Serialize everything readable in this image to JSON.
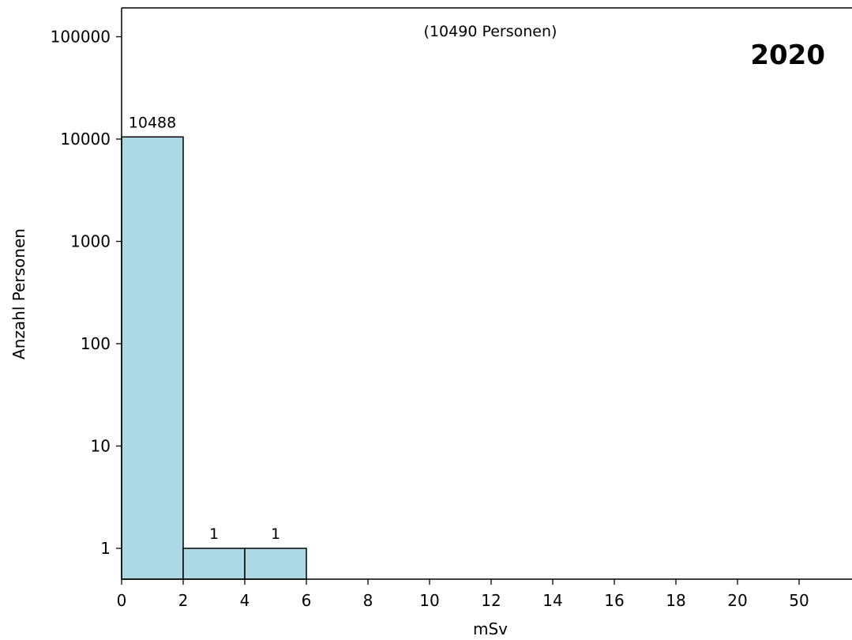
{
  "chart_data": {
    "type": "bar",
    "subtitle": "(10490 Personen)",
    "year_label": "2020",
    "xlabel": "mSv",
    "ylabel": "Anzahl Personen",
    "yscale": "log",
    "ylim": [
      0.75,
      200000
    ],
    "y_ticks": [
      {
        "value": 1,
        "label": "1"
      },
      {
        "value": 10,
        "label": "10"
      },
      {
        "value": 100,
        "label": "100"
      },
      {
        "value": 1000,
        "label": "1000"
      },
      {
        "value": 10000,
        "label": "10000"
      },
      {
        "value": 100000,
        "label": "100000"
      }
    ],
    "x_ticks": [
      "0",
      "2",
      "4",
      "6",
      "8",
      "10",
      "12",
      "14",
      "16",
      "18",
      "20",
      "50"
    ],
    "bins": [
      {
        "from": "0",
        "to": "2",
        "value": 10488,
        "label": "10488"
      },
      {
        "from": "2",
        "to": "4",
        "value": 1,
        "label": "1"
      },
      {
        "from": "4",
        "to": "6",
        "value": 1,
        "label": "1"
      }
    ],
    "bar_color": "#add8e6",
    "grid": false
  }
}
